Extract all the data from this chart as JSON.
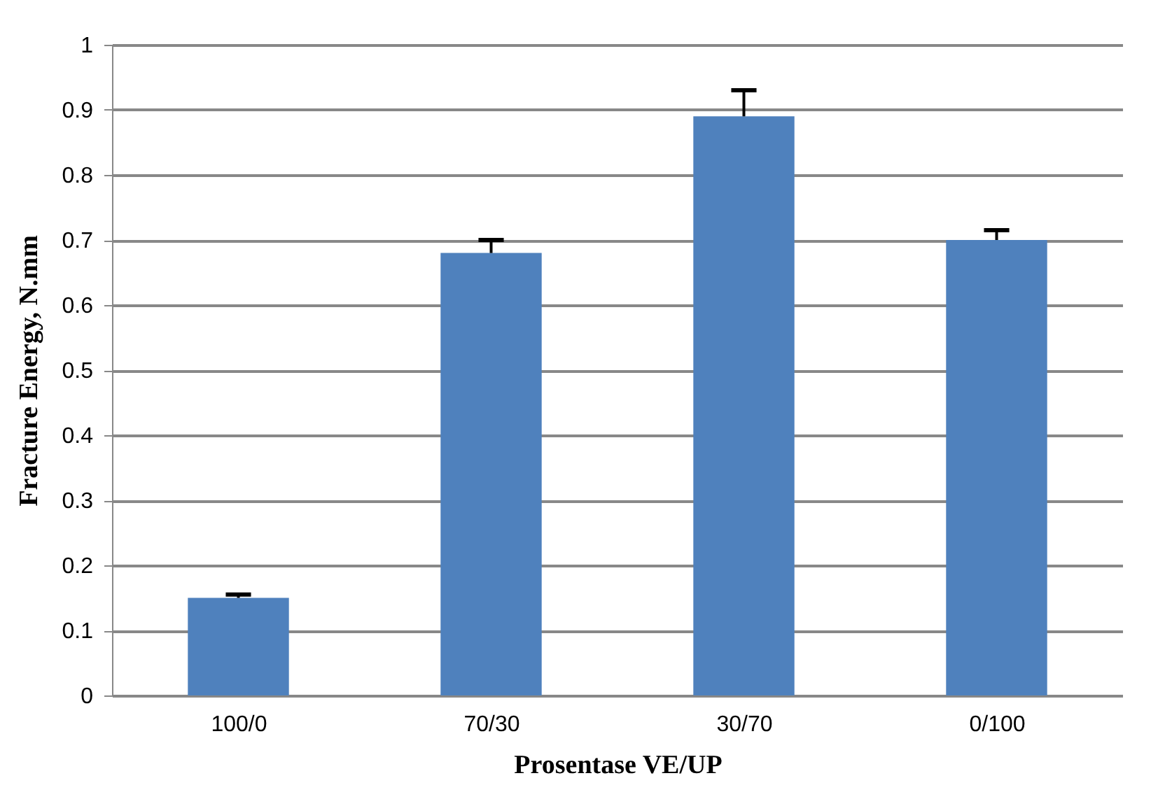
{
  "chart_data": {
    "type": "bar",
    "xlabel": "Prosentase VE/UP",
    "ylabel": "Fracture Energy, N.mm",
    "categories": [
      "100/0",
      "70/30",
      "30/70",
      "0/100"
    ],
    "values": [
      0.15,
      0.68,
      0.89,
      0.7
    ],
    "errors": [
      [
        0.15,
        0.155
      ],
      [
        0.68,
        0.7
      ],
      [
        0.89,
        0.93
      ],
      [
        0.7,
        0.715
      ]
    ],
    "color": "#4f81bd",
    "ylim": [
      0,
      1
    ],
    "yticks": [
      0,
      0.1,
      0.2,
      0.3,
      0.4,
      0.5,
      0.6,
      0.7,
      0.8,
      0.9,
      1
    ],
    "grid": "y"
  }
}
